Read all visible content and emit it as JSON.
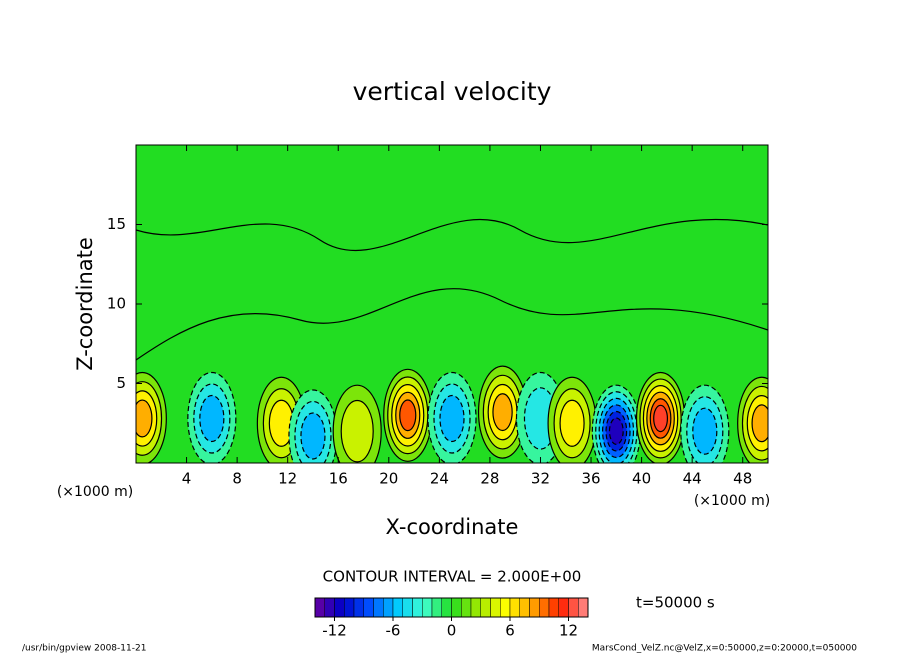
{
  "chart_data": {
    "type": "contour",
    "title": "vertical velocity",
    "x_label": "X-coordinate",
    "y_label": "Z-coordinate",
    "x_unit": "(×1000 m)",
    "xlim": [
      0,
      50
    ],
    "xticks": [
      4,
      8,
      12,
      16,
      20,
      24,
      28,
      32,
      36,
      40,
      44,
      48
    ],
    "ylim": [
      0,
      20
    ],
    "yticks": [
      5,
      10,
      15
    ],
    "features": [
      {
        "x": 0.5,
        "z": 2.8,
        "value": 8
      },
      {
        "x": 6,
        "z": 2.8,
        "value": -6
      },
      {
        "x": 11.5,
        "z": 2.5,
        "value": 6
      },
      {
        "x": 14,
        "z": 1.7,
        "value": -6
      },
      {
        "x": 17.5,
        "z": 2.0,
        "value": 4
      },
      {
        "x": 21.5,
        "z": 3.0,
        "value": 10
      },
      {
        "x": 25,
        "z": 2.8,
        "value": -6
      },
      {
        "x": 29,
        "z": 3.2,
        "value": 8
      },
      {
        "x": 32,
        "z": 2.8,
        "value": -4
      },
      {
        "x": 34.5,
        "z": 2.5,
        "value": 6
      },
      {
        "x": 38,
        "z": 2.0,
        "value": -12
      },
      {
        "x": 41.5,
        "z": 2.8,
        "value": 12
      },
      {
        "x": 45,
        "z": 2.0,
        "value": -6
      },
      {
        "x": 49.5,
        "z": 2.5,
        "value": 8
      }
    ],
    "contour_interval": 2,
    "contour_text": "CONTOUR INTERVAL = 2.000E+00",
    "time_text": "t=50000 s",
    "clim": [
      -14,
      14
    ],
    "cticks": [
      -12,
      -6,
      0,
      6,
      12
    ],
    "colormap": [
      "#6a00a0",
      "#0000c8",
      "#0050ff",
      "#00c8ff",
      "#40ffd0",
      "#22dd22",
      "#a0e800",
      "#ffff00",
      "#ffa000",
      "#ff2000",
      "#ff9090"
    ],
    "footer_left": "/usr/bin/gpview  2008-11-21",
    "footer_right": "MarsCond_VelZ.nc@VelZ,x=0:50000,z=0:20000,t=050000"
  }
}
